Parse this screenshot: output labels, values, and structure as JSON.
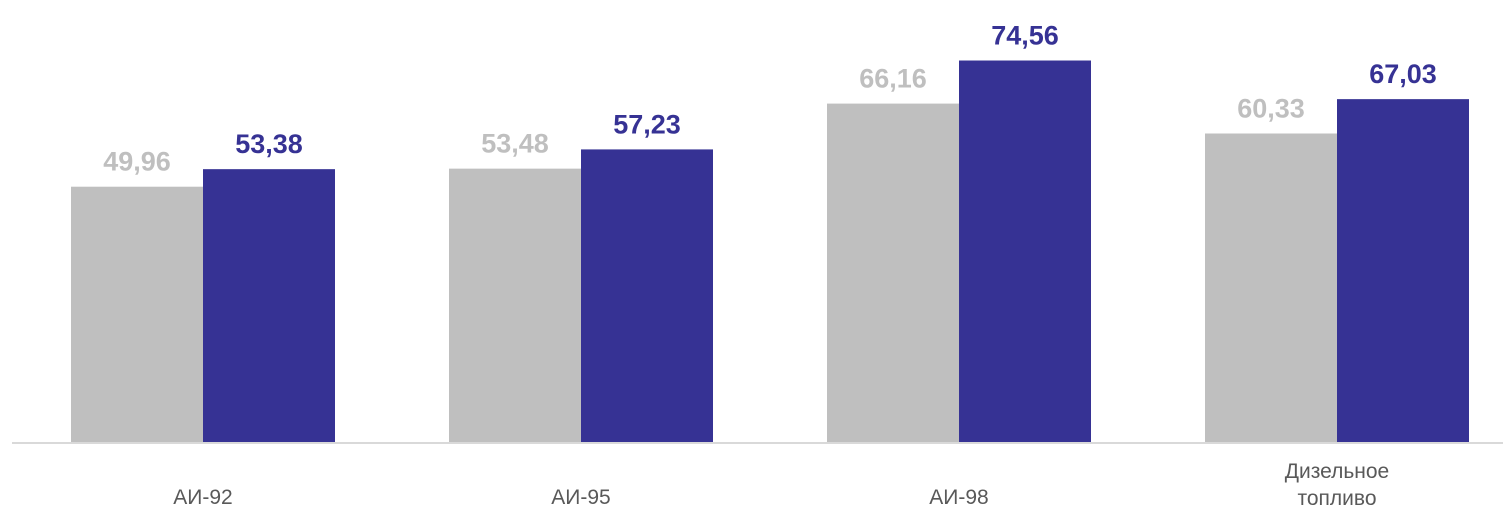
{
  "chart_data": {
    "type": "bar",
    "categories": [
      [
        "АИ-92"
      ],
      [
        "АИ-95"
      ],
      [
        "АИ-98"
      ],
      [
        "Дизельное",
        "топливо"
      ]
    ],
    "series": [
      {
        "values": [
          49.96,
          53.48,
          66.16,
          60.33
        ],
        "labels": [
          "49,96",
          "53,48",
          "66,16",
          "60,33"
        ],
        "color": "#BFBFBF",
        "label_color": "#BFBFBF"
      },
      {
        "values": [
          53.38,
          57.23,
          74.56,
          67.03
        ],
        "labels": [
          "53,38",
          "57,23",
          "74,56",
          "67,03"
        ],
        "color": "#363294",
        "label_color": "#363294"
      }
    ],
    "ylim": [
      0,
      80
    ],
    "grid": false,
    "legend": "none",
    "title": "",
    "xlabel": "",
    "ylabel": ""
  }
}
